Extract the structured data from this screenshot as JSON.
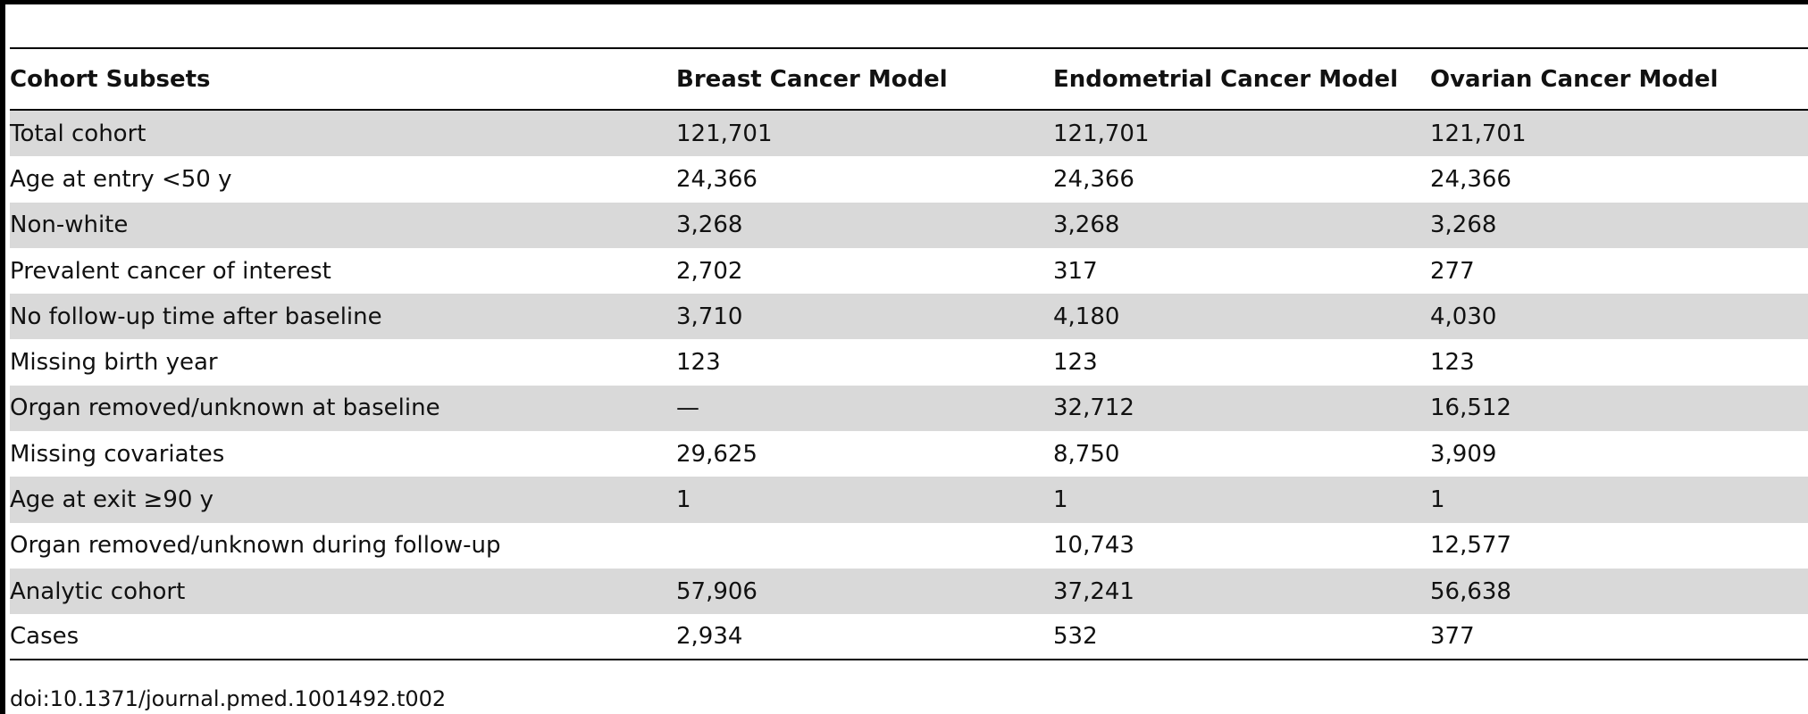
{
  "table": {
    "headers": [
      "Cohort Subsets",
      "Breast Cancer Model",
      "Endometrial Cancer Model",
      "Ovarian Cancer Model"
    ],
    "rows": [
      [
        "Total cohort",
        "121,701",
        "121,701",
        "121,701"
      ],
      [
        "Age at entry <50 y",
        "24,366",
        "24,366",
        "24,366"
      ],
      [
        "Non-white",
        "3,268",
        "3,268",
        "3,268"
      ],
      [
        "Prevalent cancer of interest",
        "2,702",
        "317",
        "277"
      ],
      [
        "No follow-up time after baseline",
        "3,710",
        "4,180",
        "4,030"
      ],
      [
        "Missing birth year",
        "123",
        "123",
        "123"
      ],
      [
        "Organ removed/unknown at baseline",
        "—",
        "32,712",
        "16,512"
      ],
      [
        "Missing covariates",
        "29,625",
        "8,750",
        "3,909"
      ],
      [
        "Age at exit ≥90 y",
        "1",
        "1",
        "1"
      ],
      [
        "Organ removed/unknown during follow-up",
        "",
        "10,743",
        "12,577"
      ],
      [
        "Analytic cohort",
        "57,906",
        "37,241",
        "56,638"
      ],
      [
        "Cases",
        "2,934",
        "532",
        "377"
      ]
    ]
  },
  "footer": {
    "doi": "doi:10.1371/journal.pmed.1001492.t002"
  },
  "colors": {
    "row_shade": "#d9d9d9",
    "rule": "#000000"
  }
}
